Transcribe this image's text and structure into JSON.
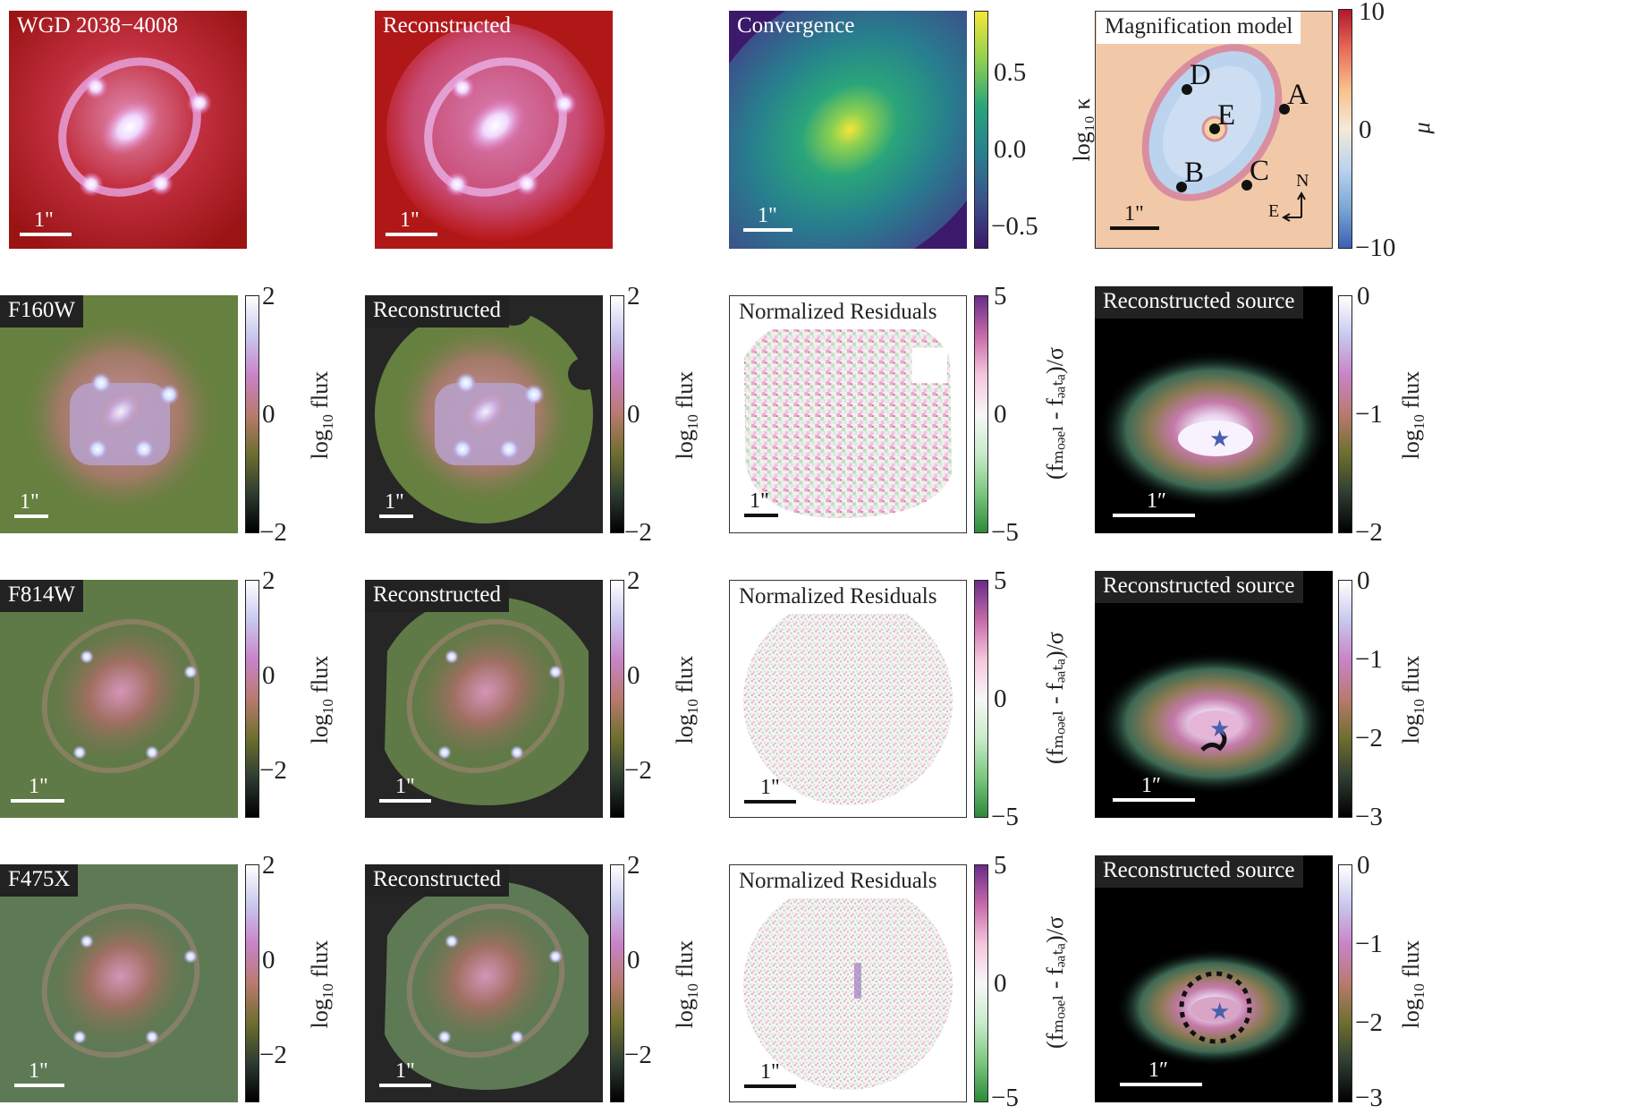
{
  "rows": [
    {
      "observed": {
        "title": "WGD 2038−4008",
        "scale": "1\""
      },
      "reconstructed": {
        "title": "Reconstructed",
        "scale": "1\""
      },
      "third": {
        "title": "Convergence",
        "scale": "1\"",
        "cbar_ticks": [
          "0.5",
          "0.0",
          "−0.5"
        ],
        "cbar_label": "log₁₀ κ"
      },
      "fourth": {
        "title": "Magnification model",
        "scale": "1\"",
        "cbar_ticks": [
          "10",
          "0",
          "−10"
        ],
        "cbar_label": "μ",
        "images": [
          "A",
          "B",
          "C",
          "D",
          "E"
        ],
        "compass_n": "N",
        "compass_e": "E"
      }
    },
    {
      "observed": {
        "title": "F160W",
        "scale": "1\"",
        "cbar_ticks": [
          "2",
          "0",
          "−2"
        ],
        "cbar_label_main": "log",
        "cbar_label_sub": "10",
        "cbar_label_tail": " flux"
      },
      "reconstructed": {
        "title": "Reconstructed",
        "scale": "1\"",
        "cbar_ticks": [
          "2",
          "0",
          "−2"
        ],
        "cbar_label_main": "log",
        "cbar_label_sub": "10",
        "cbar_label_tail": " flux"
      },
      "third": {
        "title": "Normalized Residuals",
        "scale": "1\"",
        "cbar_ticks": [
          "5",
          "0",
          "−5"
        ],
        "cbar_label": "(fₘₒₔₑₗ - fₔₐₜₐ)/σ"
      },
      "fourth": {
        "title": "Reconstructed source",
        "scale": "1″",
        "cbar_ticks": [
          "0",
          "−1",
          "−2"
        ],
        "cbar_label_main": "log",
        "cbar_label_sub": "10",
        "cbar_label_tail": " flux"
      }
    },
    {
      "observed": {
        "title": "F814W",
        "scale": "1\"",
        "cbar_ticks": [
          "2",
          "0",
          "−2"
        ],
        "cbar_label_main": "log",
        "cbar_label_sub": "10",
        "cbar_label_tail": " flux"
      },
      "reconstructed": {
        "title": "Reconstructed",
        "scale": "1\"",
        "cbar_ticks": [
          "2",
          "0",
          "−2"
        ],
        "cbar_label_main": "log",
        "cbar_label_sub": "10",
        "cbar_label_tail": " flux"
      },
      "third": {
        "title": "Normalized Residuals",
        "scale": "1\"",
        "cbar_ticks": [
          "5",
          "0",
          "−5"
        ],
        "cbar_label": "(fₘₒₔₑₗ - fₔₐₜₐ)/σ"
      },
      "fourth": {
        "title": "Reconstructed source",
        "scale": "1″",
        "cbar_ticks": [
          "0",
          "−1",
          "−2",
          "−3"
        ],
        "cbar_label_main": "log",
        "cbar_label_sub": "10",
        "cbar_label_tail": " flux"
      }
    },
    {
      "observed": {
        "title": "F475X",
        "scale": "1\"",
        "cbar_ticks": [
          "2",
          "0",
          "−2"
        ],
        "cbar_label_main": "log",
        "cbar_label_sub": "10",
        "cbar_label_tail": " flux"
      },
      "reconstructed": {
        "title": "Reconstructed",
        "scale": "1\"",
        "cbar_ticks": [
          "2",
          "0",
          "−2"
        ],
        "cbar_label_main": "log",
        "cbar_label_sub": "10",
        "cbar_label_tail": " flux"
      },
      "third": {
        "title": "Normalized Residuals",
        "scale": "1\"",
        "cbar_ticks": [
          "5",
          "0",
          "−5"
        ],
        "cbar_label": "(fₘₒₔₑₗ - fₔₐₜₐ)/σ"
      },
      "fourth": {
        "title": "Reconstructed source",
        "scale": "1″",
        "cbar_ticks": [
          "0",
          "−1",
          "−2",
          "−3"
        ],
        "cbar_label_main": "log",
        "cbar_label_sub": "10",
        "cbar_label_tail": " flux"
      }
    }
  ],
  "colors": {
    "rgb_bg": "#b01818",
    "flux_bg": "#5f7a46",
    "dark_mask": "#262626",
    "residual_pink": "#d96aa6",
    "residual_green": "#4cae5a",
    "viridis_low": "#3b1a6b",
    "viridis_high": "#f5e63a",
    "mag_outer": "#f2c9a8",
    "mag_inner": "#bcd3ee"
  }
}
